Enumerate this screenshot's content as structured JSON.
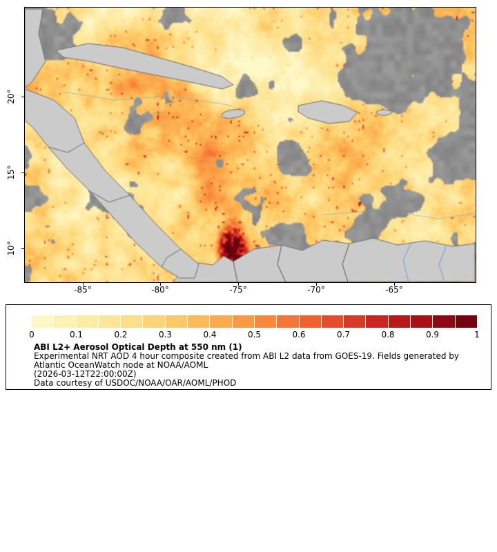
{
  "map": {
    "y_ticks": [
      "20°",
      "15°",
      "10°"
    ],
    "x_ticks": [
      "-85°",
      "-80°",
      "-75°",
      "-70°",
      "-65°"
    ]
  },
  "colorbar": {
    "ticks": [
      "0",
      "0.1",
      "0.2",
      "0.3",
      "0.4",
      "0.5",
      "0.6",
      "0.7",
      "0.8",
      "0.9",
      "1"
    ]
  },
  "legend": {
    "title": "ABI L2+ Aerosol Optical Depth at 550 nm (1)",
    "description": "Experimental NRT AOD 4 hour composite created from ABI L2 data from GOES-19. Fields generated by Atlantic OceanWatch node at NOAA/AOML",
    "timestamp": "(2026-03-12T22:00:00Z)",
    "credit": "Data courtesy of USDOC/NOAA/OAR/AOML/PHOD"
  },
  "colors": {
    "colormap": [
      "#fffbd0",
      "#feeeab",
      "#fee391",
      "#fed06e",
      "#fdb351",
      "#fb9140",
      "#f46d33",
      "#e04428",
      "#c31c1e",
      "#9d0d14",
      "#67000d"
    ],
    "cloud_gray": "#8f8f8f",
    "land_gray": "#cbcbcb",
    "coast_line": "#6e6e6e",
    "river_blue": "#6f9fc8",
    "frame_black": "#000000"
  },
  "chart_data": {
    "type": "heatmap",
    "title": "ABI L2+ Aerosol Optical Depth at 550 nm (1)",
    "value_label": "Aerosol Optical Depth at 550 nm",
    "value_range": [
      0,
      1
    ],
    "colorbar_ticks": [
      0,
      0.1,
      0.2,
      0.3,
      0.4,
      0.5,
      0.6,
      0.7,
      0.8,
      0.9,
      1
    ],
    "x_axis_ticks_lon_deg": [
      -85,
      -80,
      -75,
      -70,
      -65
    ],
    "y_axis_ticks_lat_deg": [
      20,
      15,
      10
    ],
    "legend_position": "bottom"
  }
}
